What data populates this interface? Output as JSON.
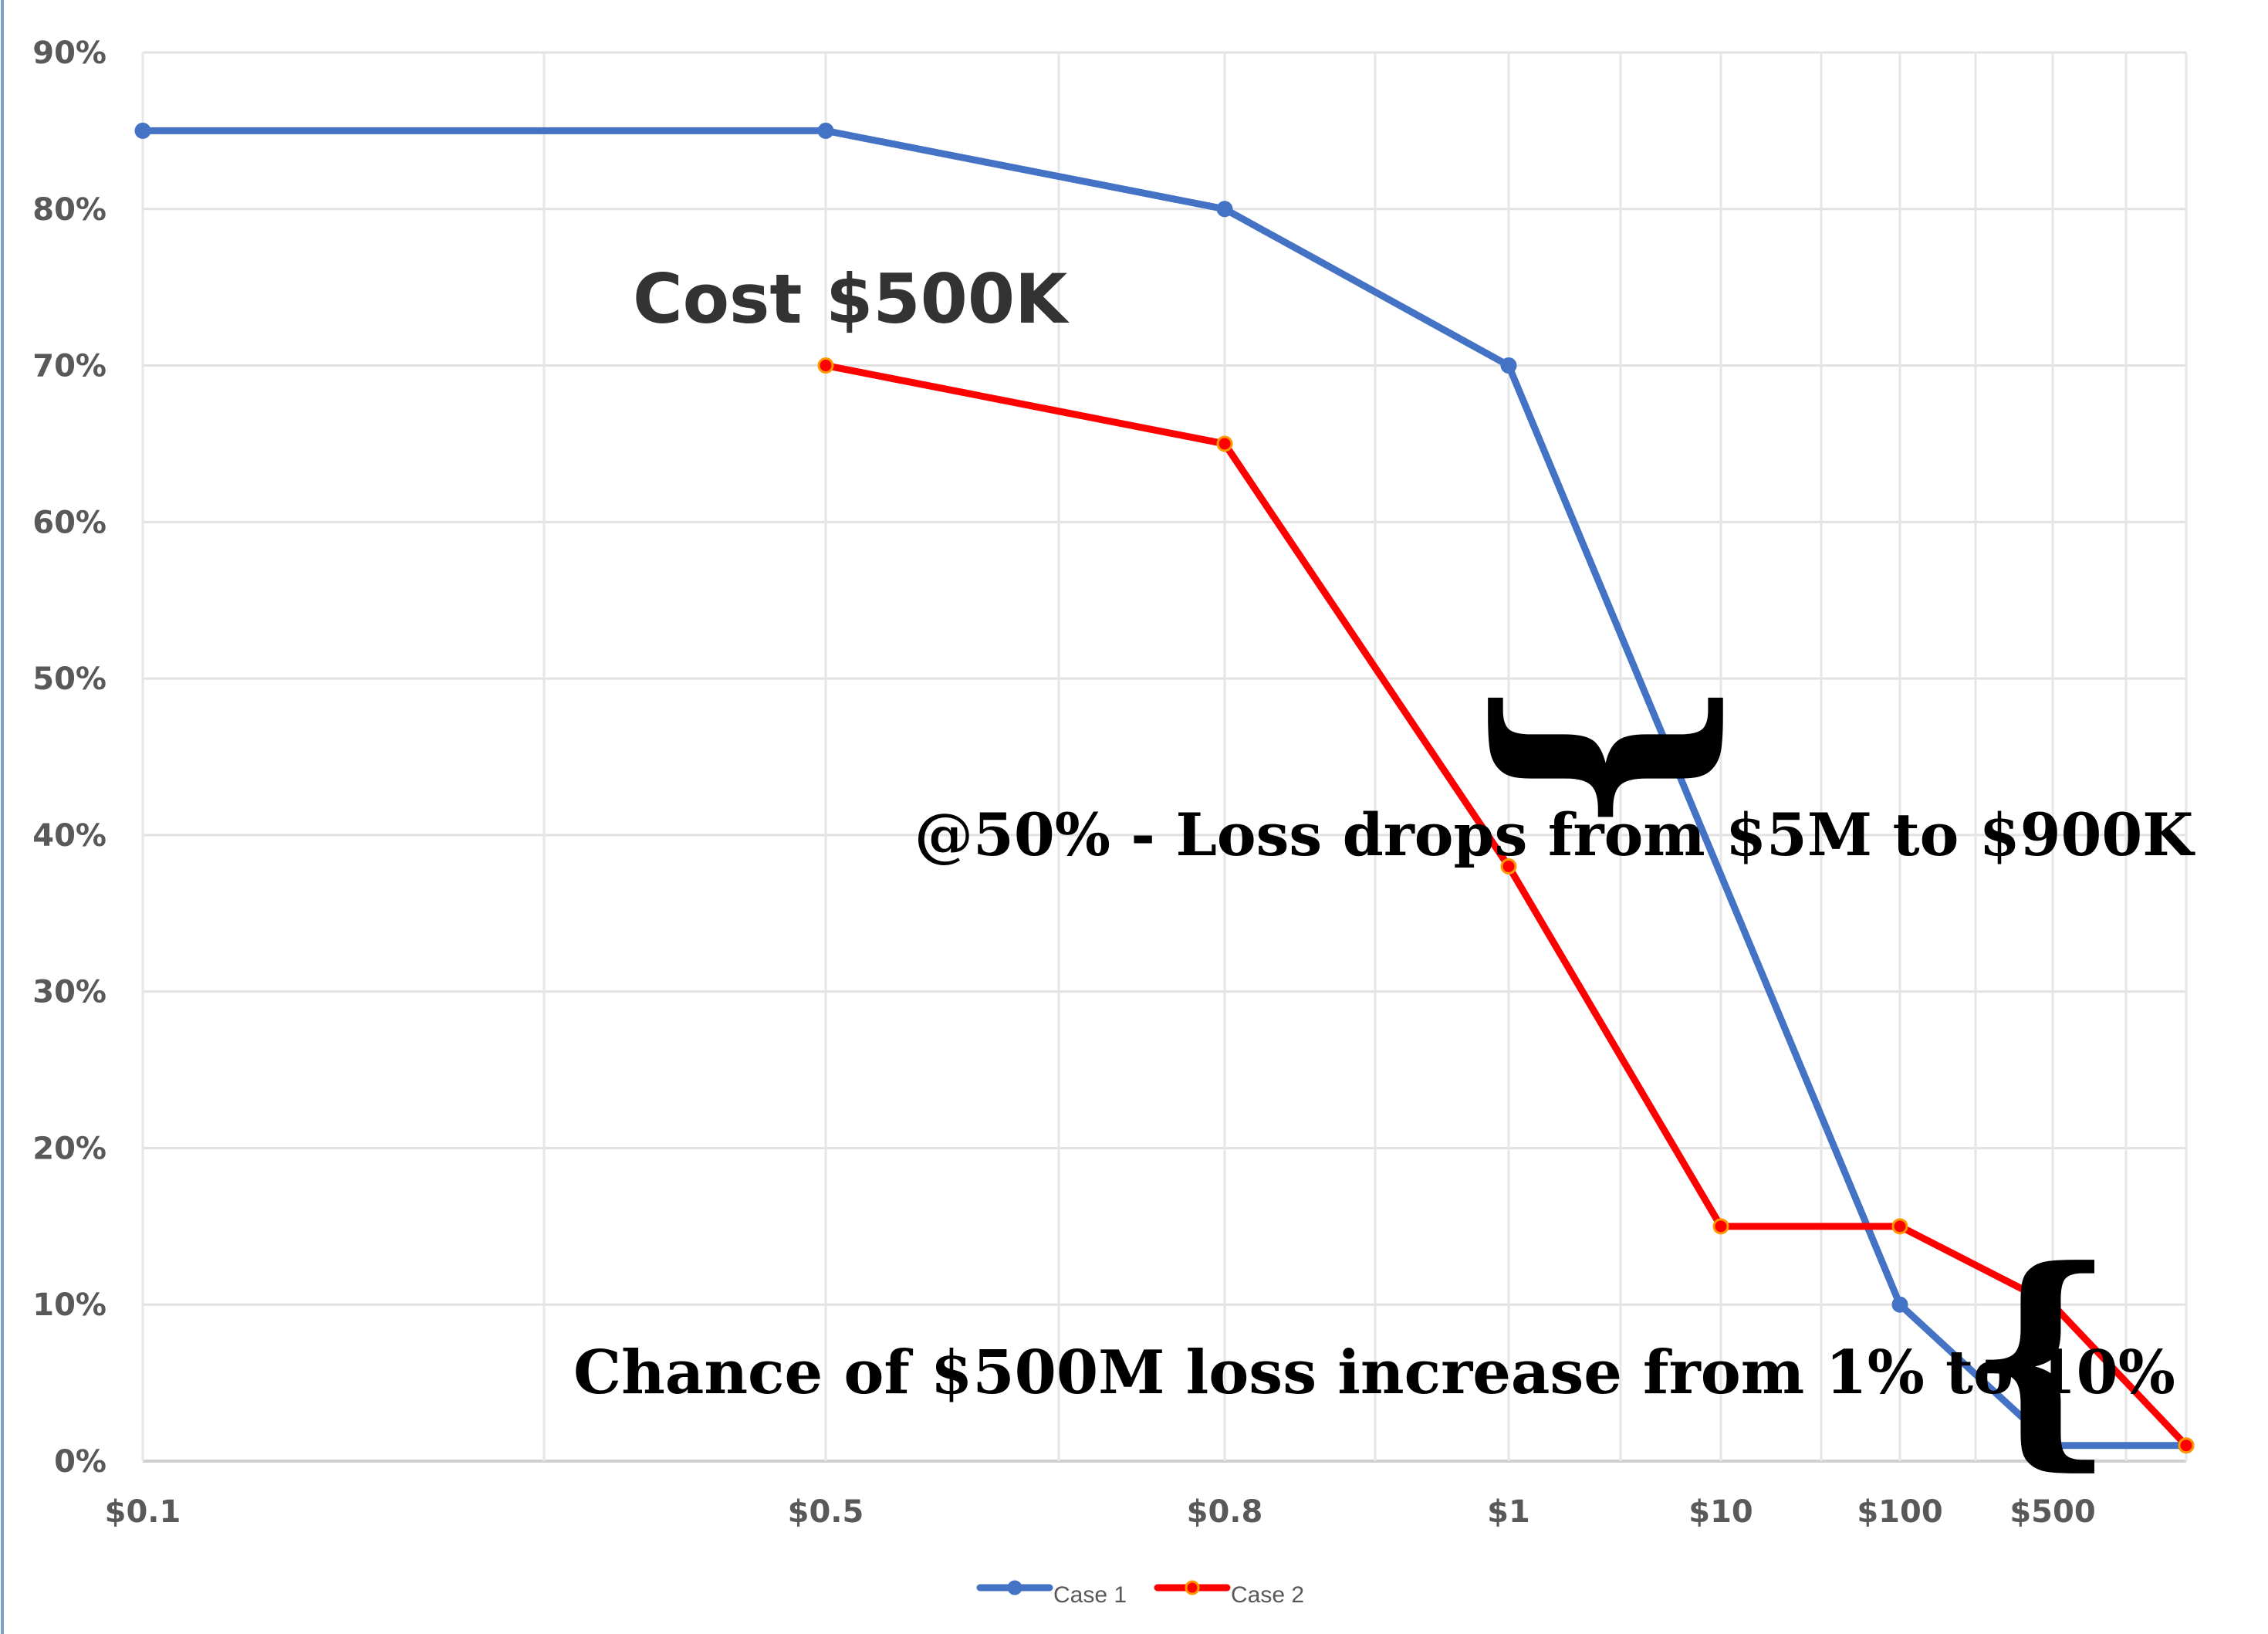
{
  "chart_data": {
    "type": "line",
    "categories": [
      "$0.1",
      "$0.5",
      "$0.8",
      "$1",
      "$10",
      "$100",
      "$500",
      ""
    ],
    "series": [
      {
        "name": "Case 1",
        "color": "#4472c4",
        "points": [
          {
            "x": "$0.1",
            "y": 85
          },
          {
            "x": "$0.5",
            "y": 85
          },
          {
            "x": "$0.8",
            "y": 80
          },
          {
            "x": "$1",
            "y": 70
          },
          {
            "x": "$100",
            "y": 10
          },
          {
            "x": "$500",
            "y": 1
          },
          {
            "x": "",
            "y": 1
          }
        ]
      },
      {
        "name": "Case 2",
        "color": "#ff0000",
        "points": [
          {
            "x": "$0.5",
            "y": 70
          },
          {
            "x": "$0.8",
            "y": 65
          },
          {
            "x": "$1",
            "y": 38
          },
          {
            "x": "$10",
            "y": 15
          },
          {
            "x": "$100",
            "y": 15
          },
          {
            "x": "$500",
            "y": 10
          },
          {
            "x": "",
            "y": 1
          }
        ]
      }
    ],
    "y_ticks": [
      "0%",
      "10%",
      "20%",
      "30%",
      "40%",
      "50%",
      "60%",
      "70%",
      "80%",
      "90%"
    ],
    "ylim": [
      0,
      90
    ],
    "y_unit": "%",
    "grid": true,
    "legend_position": "bottom",
    "annotations": [
      "Cost $500K",
      "@50% - Loss drops from $5M to $900K",
      "Chance of $500M loss increase from 1% to 10%"
    ]
  }
}
